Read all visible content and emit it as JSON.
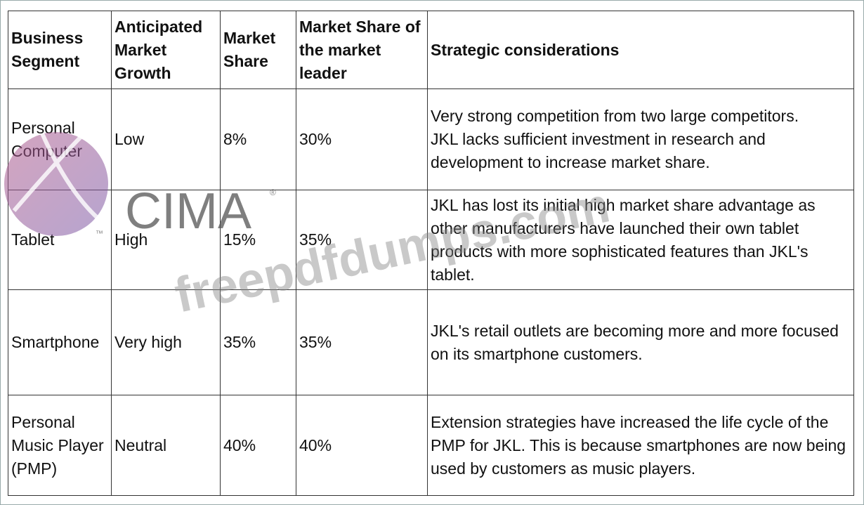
{
  "table": {
    "header": [
      "Business Segment",
      "Anticipated Market Growth",
      "Market Share",
      "Market Share of the market leader",
      "Strategic considerations"
    ],
    "rows": [
      [
        "Personal Computer",
        "Low",
        "8%",
        "30%",
        [
          "Very strong competition from two large competitors.",
          "JKL lacks sufficient investment in research and development to increase market share."
        ]
      ],
      [
        "Tablet",
        "High",
        "15%",
        "35%",
        [
          "JKL has lost its initial high market share advantage as other manufacturers have launched their own tablet products with more sophisticated features than JKL's tablet."
        ]
      ],
      [
        "Smartphone",
        "Very high",
        "35%",
        "35%",
        [
          "JKL's retail outlets are becoming more and more focused on its smartphone customers."
        ]
      ],
      [
        "Personal Music Player (PMP)",
        "Neutral",
        "40%",
        "40%",
        [
          "Extension strategies have increased the life cycle of the PMP for JKL. This is because smartphones are now being used by customers as music players."
        ]
      ]
    ]
  },
  "watermark": {
    "logo": "CIMA",
    "registered": "®",
    "trademark": "™",
    "site": "freepdfdumps.com"
  }
}
